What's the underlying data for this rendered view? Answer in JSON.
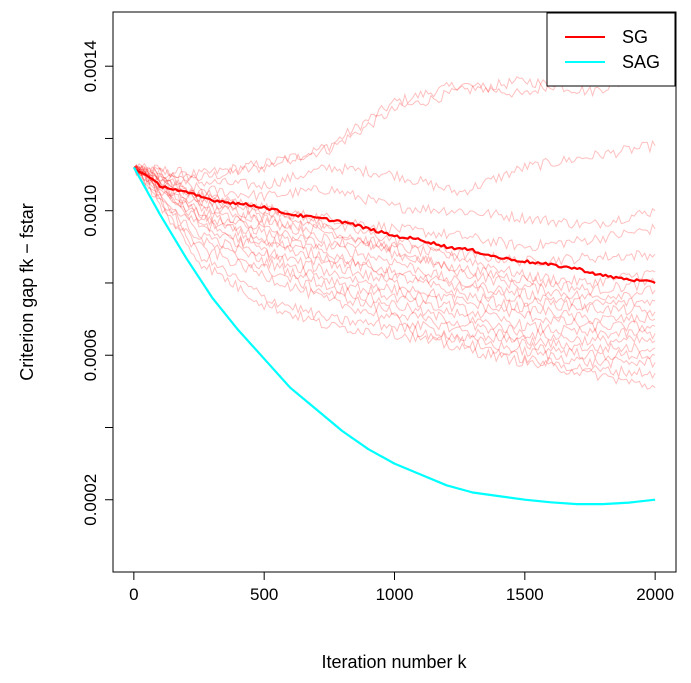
{
  "chart_data": {
    "type": "line",
    "title": "",
    "xlabel": "Iteration number k",
    "ylabel": "Criterion gap fk − fstar",
    "xlim": [
      -80,
      2080
    ],
    "ylim": [
      0.0,
      0.00155
    ],
    "x_ticks": [
      0,
      500,
      1000,
      1500,
      2000
    ],
    "x_tick_labels": [
      "0",
      "500",
      "1000",
      "1500",
      "2000"
    ],
    "y_ticks": [
      0.0002,
      0.0004,
      0.0006,
      0.0008,
      0.001,
      0.0012,
      0.0014
    ],
    "y_tick_labels": [
      "0.0002",
      "",
      "0.0006",
      "",
      "0.0010",
      "",
      "0.0014"
    ],
    "grid": false,
    "legend": {
      "position": "top-right",
      "entries": [
        {
          "label": "SG",
          "color": "#ff0000"
        },
        {
          "label": "SAG",
          "color": "#00ffff"
        }
      ]
    },
    "x": [
      0,
      100,
      200,
      300,
      400,
      500,
      600,
      700,
      800,
      900,
      1000,
      1100,
      1200,
      1300,
      1400,
      1500,
      1600,
      1700,
      1800,
      1900,
      2000
    ],
    "series": [
      {
        "name": "SG",
        "color": "#ff0000",
        "values": [
          0.00112,
          0.00107,
          0.00105,
          0.00103,
          0.00102,
          0.00101,
          0.00099,
          0.00098,
          0.00097,
          0.00095,
          0.00093,
          0.00092,
          0.0009,
          0.00089,
          0.00087,
          0.00086,
          0.00085,
          0.00084,
          0.00082,
          0.00081,
          0.0008
        ]
      },
      {
        "name": "SAG",
        "color": "#00ffff",
        "values": [
          0.00112,
          0.00099,
          0.00087,
          0.00076,
          0.00067,
          0.00059,
          0.00051,
          0.00045,
          0.00039,
          0.00034,
          0.0003,
          0.00027,
          0.00024,
          0.00022,
          0.00021,
          0.0002,
          0.000193,
          0.000188,
          0.000188,
          0.000192,
          0.0002
        ]
      }
    ],
    "sg_sample_paths": {
      "color": "#ff0000",
      "opacity": 0.25,
      "count": 20,
      "x": [
        0,
        250,
        500,
        750,
        1000,
        1250,
        1500,
        1750,
        2000
      ],
      "paths": [
        [
          0.00112,
          0.00109,
          0.00112,
          0.00118,
          0.0013,
          0.00135,
          0.00132,
          0.0014,
          0.00145
        ],
        [
          0.00112,
          0.0011,
          0.00113,
          0.00117,
          0.00128,
          0.00133,
          0.00136,
          0.00133,
          0.00138
        ],
        [
          0.00112,
          0.00108,
          0.00107,
          0.00112,
          0.0011,
          0.00105,
          0.00112,
          0.00115,
          0.00118
        ],
        [
          0.00112,
          0.00106,
          0.00104,
          0.00106,
          0.00101,
          0.001,
          0.00098,
          0.00096,
          0.001
        ],
        [
          0.00112,
          0.00105,
          0.001,
          0.00098,
          0.00095,
          0.00093,
          0.0009,
          0.00092,
          0.00095
        ],
        [
          0.00112,
          0.00104,
          0.00101,
          0.00096,
          0.00092,
          0.00088,
          0.00086,
          0.00087,
          0.00088
        ],
        [
          0.00112,
          0.00103,
          0.00098,
          0.00094,
          0.0009,
          0.00087,
          0.00082,
          0.0008,
          0.00083
        ],
        [
          0.00112,
          0.00104,
          0.00099,
          0.00095,
          0.00088,
          0.00084,
          0.00081,
          0.00078,
          0.0008
        ],
        [
          0.00112,
          0.00102,
          0.00097,
          0.00092,
          0.00089,
          0.00083,
          0.00079,
          0.00076,
          0.00078
        ],
        [
          0.00112,
          0.00101,
          0.00095,
          0.0009,
          0.00086,
          0.0008,
          0.00077,
          0.00074,
          0.00075
        ],
        [
          0.00112,
          0.001,
          0.00094,
          0.00088,
          0.00083,
          0.00079,
          0.00075,
          0.00073,
          0.00072
        ],
        [
          0.00112,
          0.00099,
          0.00092,
          0.00087,
          0.00082,
          0.00077,
          0.00073,
          0.0007,
          0.0007
        ],
        [
          0.00112,
          0.00098,
          0.00091,
          0.00085,
          0.0008,
          0.00075,
          0.00071,
          0.00068,
          0.00068
        ],
        [
          0.00112,
          0.00097,
          0.00089,
          0.00083,
          0.00078,
          0.00073,
          0.00068,
          0.00066,
          0.00066
        ],
        [
          0.00112,
          0.00096,
          0.00088,
          0.00081,
          0.00076,
          0.00071,
          0.00066,
          0.00064,
          0.00064
        ],
        [
          0.00112,
          0.00094,
          0.00086,
          0.00079,
          0.00074,
          0.00069,
          0.00064,
          0.00062,
          0.00062
        ],
        [
          0.00112,
          0.00092,
          0.00084,
          0.00077,
          0.00072,
          0.00067,
          0.00063,
          0.0006,
          0.0006
        ],
        [
          0.00112,
          0.0009,
          0.00082,
          0.00075,
          0.0007,
          0.00065,
          0.00061,
          0.00058,
          0.00058
        ],
        [
          0.00112,
          0.00088,
          0.00076,
          0.0007,
          0.00068,
          0.00064,
          0.00059,
          0.00056,
          0.00055
        ],
        [
          0.00112,
          0.00086,
          0.00074,
          0.00068,
          0.00066,
          0.00062,
          0.00058,
          0.00055,
          0.00051
        ]
      ]
    }
  }
}
